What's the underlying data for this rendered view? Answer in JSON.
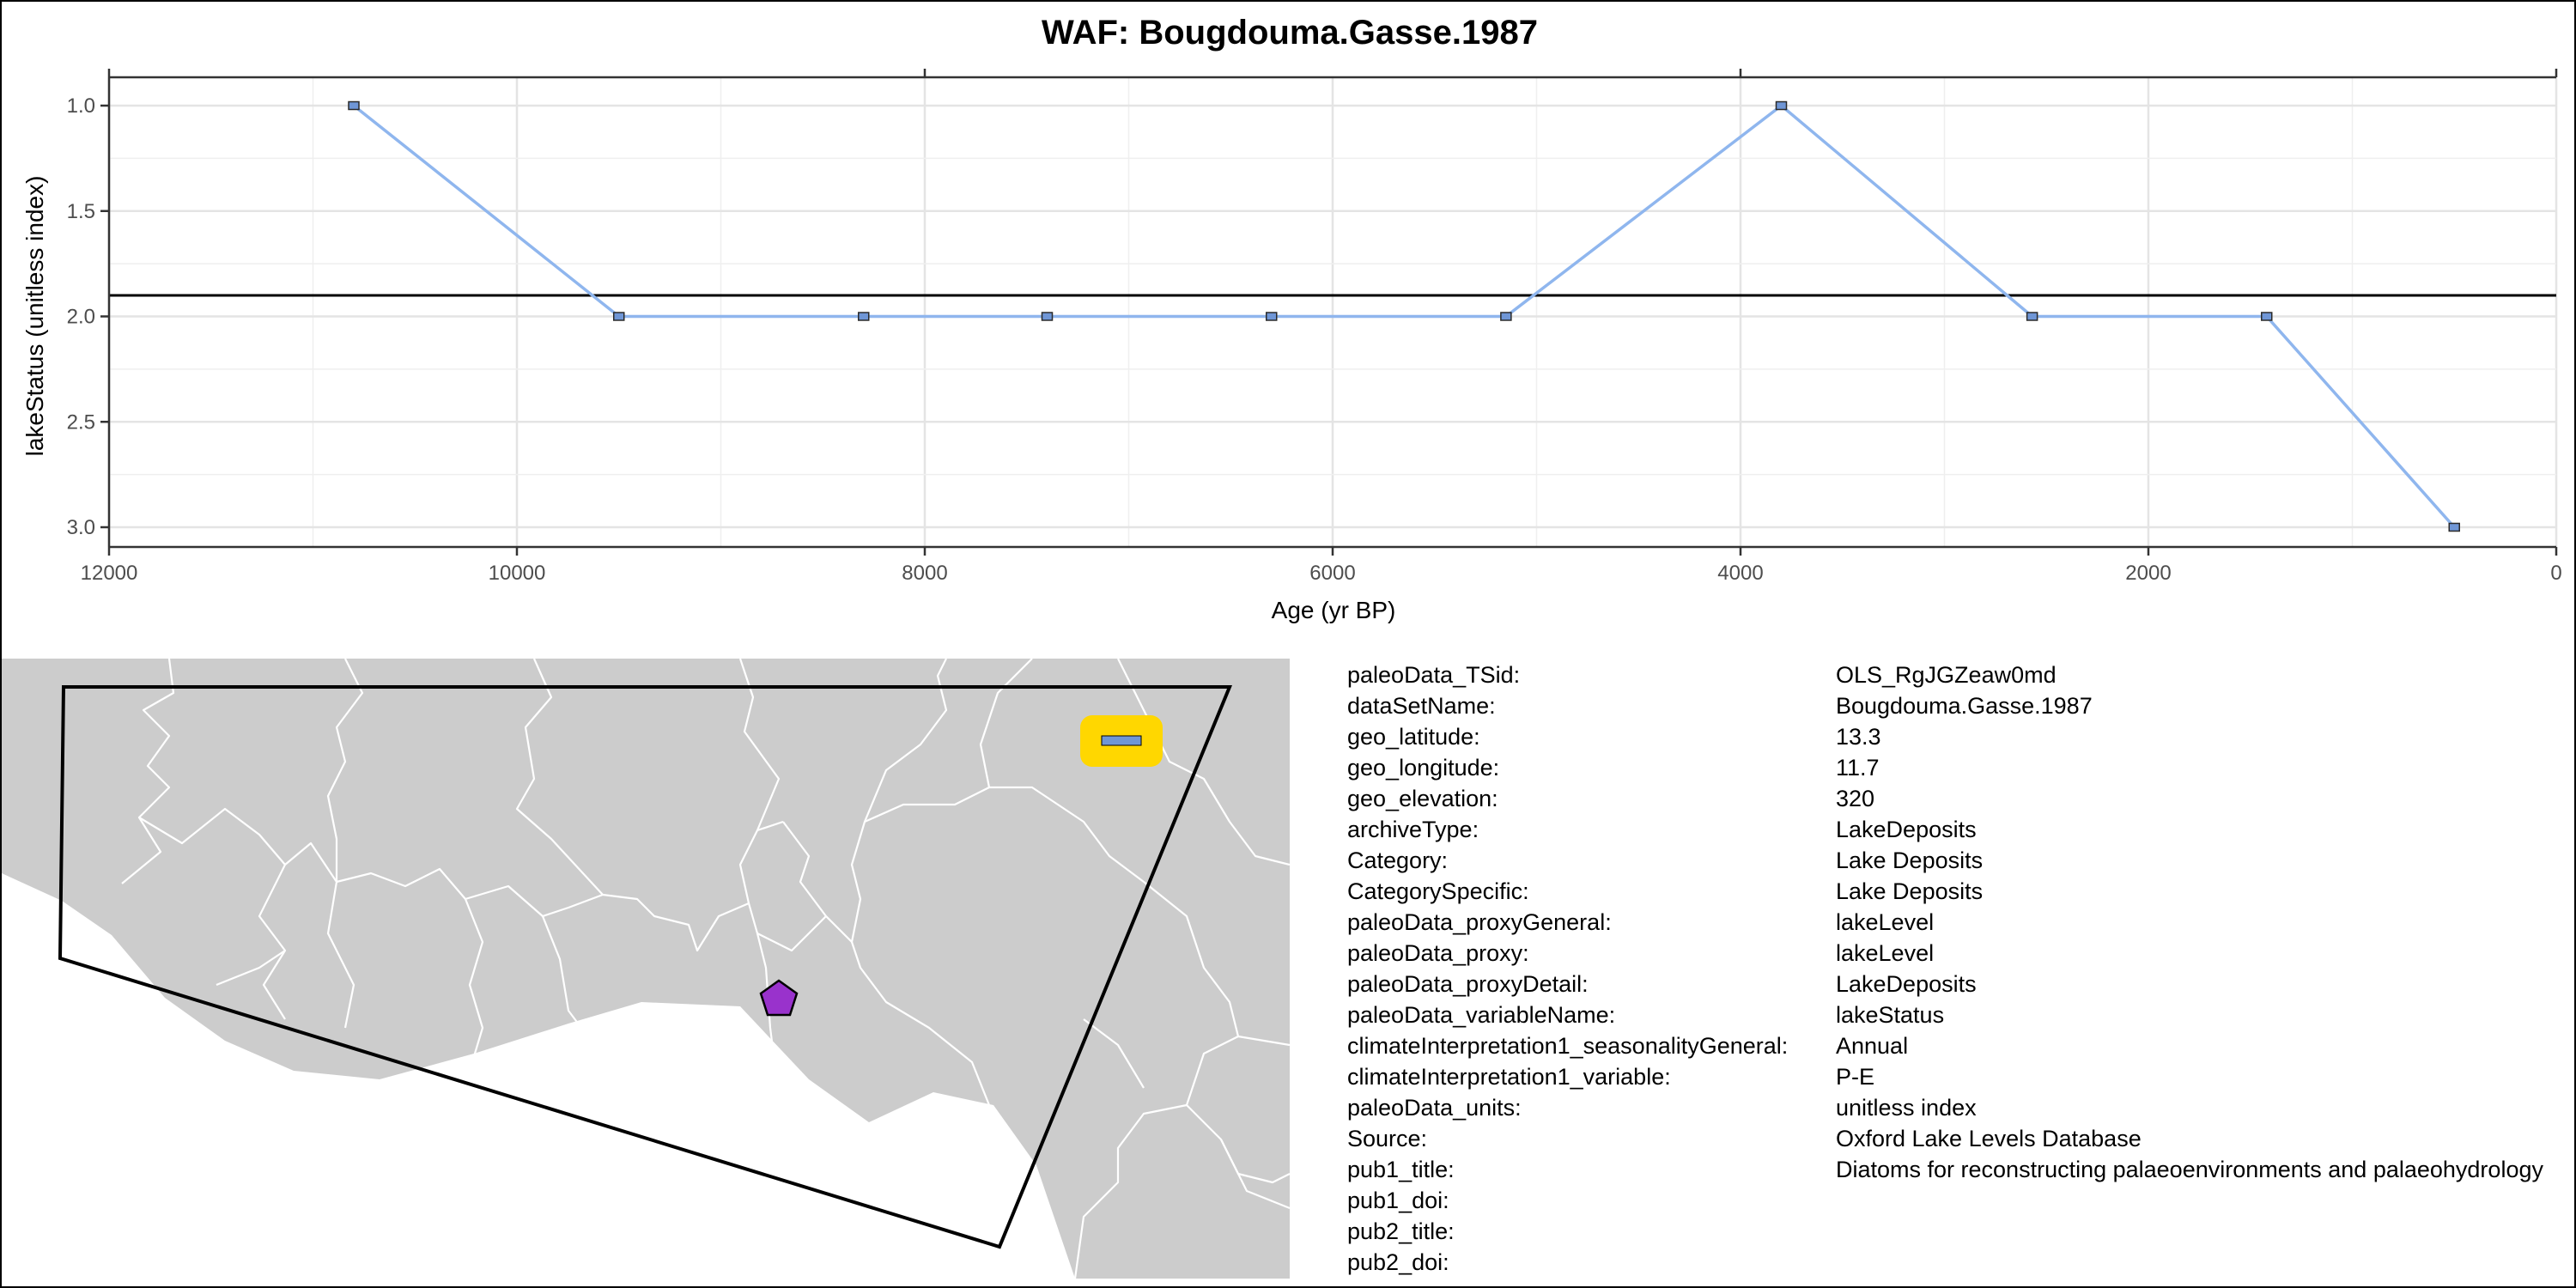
{
  "title": "WAF: Bougdouma.Gasse.1987",
  "chart_data": {
    "type": "line",
    "xlabel": "Age (yr BP)",
    "ylabel": "lakeStatus (unitless index)",
    "x_reversed": true,
    "y_reversed": true,
    "xlim": [
      12000,
      0
    ],
    "ylim": [
      3.0,
      1.0
    ],
    "x_ticks": [
      "12000",
      "10000",
      "8000",
      "6000",
      "4000",
      "2000",
      "0"
    ],
    "y_ticks": [
      "1.0",
      "1.5",
      "2.0",
      "2.5",
      "3.0"
    ],
    "reference_line_y": 1.9,
    "series": [
      {
        "x": [
          10800,
          9500,
          8300,
          7400,
          6300,
          5150,
          3800,
          2570,
          1420,
          500
        ],
        "y": [
          1.0,
          2.0,
          2.0,
          2.0,
          2.0,
          2.0,
          1.0,
          2.0,
          2.0,
          3.0
        ]
      }
    ],
    "line_color": "#8fb6ee",
    "marker_fill": "#6f96d6",
    "grid": true,
    "axis_top_ticks": true
  },
  "map": {
    "land_color": "#cccccc",
    "site_marker_color": "#9932cc",
    "site_marker_shape": "pentagon",
    "legend_box_color": "#ffd700",
    "legend_swatch_color": "#6f96d6"
  },
  "metadata": [
    {
      "key": "paleoData_TSid:",
      "value": "OLS_RgJGZeaw0md"
    },
    {
      "key": "dataSetName:",
      "value": "Bougdouma.Gasse.1987"
    },
    {
      "key": "geo_latitude:",
      "value": "13.3"
    },
    {
      "key": "geo_longitude:",
      "value": "11.7"
    },
    {
      "key": "geo_elevation:",
      "value": "320"
    },
    {
      "key": "archiveType:",
      "value": "LakeDeposits"
    },
    {
      "key": "Category:",
      "value": "Lake Deposits"
    },
    {
      "key": "CategorySpecific:",
      "value": "Lake Deposits"
    },
    {
      "key": "paleoData_proxyGeneral:",
      "value": "lakeLevel"
    },
    {
      "key": "paleoData_proxy:",
      "value": "lakeLevel"
    },
    {
      "key": "paleoData_proxyDetail:",
      "value": "LakeDeposits"
    },
    {
      "key": "paleoData_variableName:",
      "value": "lakeStatus"
    },
    {
      "key": "climateInterpretation1_seasonalityGeneral:",
      "value": "Annual"
    },
    {
      "key": "climateInterpretation1_variable:",
      "value": "P-E"
    },
    {
      "key": "paleoData_units:",
      "value": "unitless index"
    },
    {
      "key": "Source:",
      "value": "Oxford Lake Levels Database"
    },
    {
      "key": "pub1_title:",
      "value": "Diatoms for reconstructing palaeoenvironments and palaeohydrology"
    },
    {
      "key": "pub1_doi:",
      "value": ""
    },
    {
      "key": "pub2_title:",
      "value": ""
    },
    {
      "key": "pub2_doi:",
      "value": ""
    }
  ]
}
